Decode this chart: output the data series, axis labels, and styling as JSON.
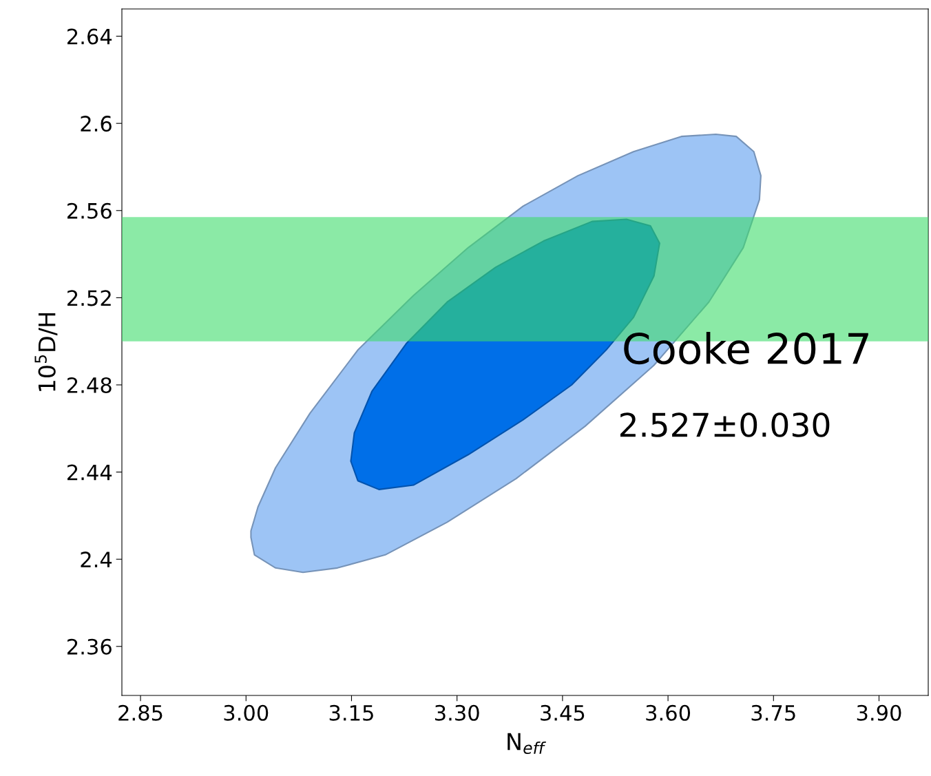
{
  "chart_data": {
    "type": "area",
    "xlabel": "N$_{eff}$",
    "ylabel": "10$^{5}$D/H",
    "xlim": [
      2.8235,
      3.97
    ],
    "ylim": [
      2.3375,
      2.6525
    ],
    "xticks": [
      {
        "value": 2.85,
        "label": "2.85"
      },
      {
        "value": 3.0,
        "label": "3.00"
      },
      {
        "value": 3.15,
        "label": "3.15"
      },
      {
        "value": 3.3,
        "label": "3.30"
      },
      {
        "value": 3.45,
        "label": "3.45"
      },
      {
        "value": 3.6,
        "label": "3.60"
      },
      {
        "value": 3.75,
        "label": "3.75"
      },
      {
        "value": 3.9,
        "label": "3.90"
      }
    ],
    "yticks": [
      2.36,
      2.4,
      2.44,
      2.48,
      2.52,
      2.56,
      2.6,
      2.64
    ],
    "series": [
      {
        "color": "#9dc4f5",
        "x": [
          3.007,
          3.012,
          3.042,
          3.081,
          3.13,
          3.198,
          3.286,
          3.384,
          3.482,
          3.58,
          3.658,
          3.707,
          3.73,
          3.732,
          3.722,
          3.697,
          3.668,
          3.619,
          3.551,
          3.472,
          3.394,
          3.316,
          3.238,
          3.159,
          3.091,
          3.042,
          3.017,
          3.007
        ],
        "values": [
          2.41,
          2.402,
          2.396,
          2.394,
          2.396,
          2.402,
          2.417,
          2.437,
          2.461,
          2.489,
          2.518,
          2.543,
          2.565,
          2.576,
          2.587,
          2.594,
          2.595,
          2.594,
          2.587,
          2.576,
          2.562,
          2.543,
          2.521,
          2.496,
          2.467,
          2.442,
          2.424,
          2.413
        ]
      },
      {
        "color": "#006fe8",
        "x": [
          3.149,
          3.159,
          3.189,
          3.238,
          3.316,
          3.394,
          3.463,
          3.512,
          3.551,
          3.58,
          3.588,
          3.575,
          3.541,
          3.492,
          3.423,
          3.355,
          3.286,
          3.228,
          3.179,
          3.154
        ],
        "values": [
          2.445,
          2.436,
          2.432,
          2.434,
          2.448,
          2.464,
          2.48,
          2.496,
          2.511,
          2.53,
          2.545,
          2.553,
          2.556,
          2.555,
          2.546,
          2.534,
          2.518,
          2.499,
          2.477,
          2.458
        ]
      }
    ],
    "bands": [
      {
        "axis": "y",
        "from": 2.5,
        "to": 2.557,
        "color": "#3ddc6a"
      }
    ],
    "annotations": [
      "Cooke 2017",
      "2.527±0.030"
    ],
    "grid": false,
    "legend": false
  }
}
